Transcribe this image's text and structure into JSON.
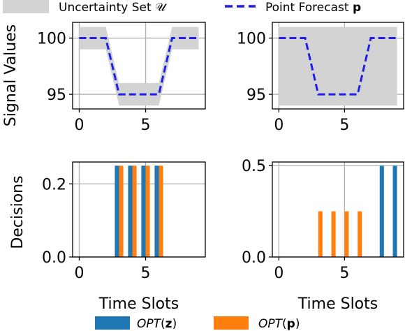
{
  "legend_top": {
    "band_label": "Uncertainty Set 𝒰",
    "line_label_prefix": "Point Forecast ",
    "line_label_bold": "p"
  },
  "legend_bottom": {
    "z_prefix": "OPT",
    "z_open": "(",
    "z_bold": "z",
    "z_close": ")",
    "p_prefix": "OPT",
    "p_open": "(",
    "p_bold": "p",
    "p_close": ")"
  },
  "colors": {
    "band": "#d3d3d3",
    "forecast": "#1f1fe6",
    "opt_z": "#1f77b4",
    "opt_p": "#ff7f0e",
    "grid": "#b0b0b0"
  },
  "chart_data": [
    {
      "type": "line",
      "panel": "top-left",
      "ylabel": "Signal Values",
      "xlim": [
        -0.5,
        9.5
      ],
      "ylim": [
        93.7,
        101.4
      ],
      "xticks": [
        0,
        5
      ],
      "yticks": [
        95,
        100
      ],
      "tick_labels_x": [
        "0",
        "5"
      ],
      "tick_labels_y": [
        "95",
        "100"
      ],
      "x": [
        0,
        1,
        2,
        3,
        4,
        5,
        6,
        7,
        8,
        9
      ],
      "forecast": [
        100,
        100,
        100,
        95,
        95,
        95,
        95,
        100,
        100,
        100
      ],
      "band_lower": [
        99,
        99,
        99,
        94,
        94,
        94,
        94,
        99,
        99,
        99
      ],
      "band_upper": [
        101,
        101,
        101,
        96,
        96,
        96,
        96,
        101,
        101,
        101
      ],
      "grid": true
    },
    {
      "type": "line",
      "panel": "top-right",
      "xlim": [
        -0.5,
        9.5
      ],
      "ylim": [
        93.7,
        101.4
      ],
      "xticks": [
        0,
        5
      ],
      "yticks": [
        95,
        100
      ],
      "tick_labels_x": [
        "0",
        "5"
      ],
      "tick_labels_y": [
        "95",
        "100"
      ],
      "x": [
        0,
        1,
        2,
        3,
        4,
        5,
        6,
        7,
        8,
        9
      ],
      "forecast": [
        100,
        100,
        100,
        95,
        95,
        95,
        95,
        100,
        100,
        100
      ],
      "band_lower": [
        94,
        94,
        94,
        94,
        94,
        94,
        94,
        94,
        94,
        94
      ],
      "band_upper": [
        101,
        101,
        101,
        101,
        101,
        101,
        101,
        101,
        101,
        101
      ],
      "grid": true
    },
    {
      "type": "bar",
      "panel": "bottom-left",
      "ylabel": "Decisions",
      "xlabel": "Time Slots",
      "xlim": [
        -0.5,
        9.5
      ],
      "ylim": [
        0,
        0.26
      ],
      "xticks": [
        0,
        5
      ],
      "yticks": [
        0.0,
        0.2
      ],
      "tick_labels_x": [
        "0",
        "5"
      ],
      "tick_labels_y": [
        "0.0",
        "0.2"
      ],
      "x": [
        0,
        1,
        2,
        3,
        4,
        5,
        6,
        7,
        8,
        9
      ],
      "opt_z": [
        0,
        0,
        0,
        0.25,
        0.25,
        0.25,
        0.25,
        0,
        0,
        0
      ],
      "opt_p": [
        0,
        0,
        0,
        0.25,
        0.25,
        0.25,
        0.25,
        0,
        0,
        0
      ],
      "grid": true
    },
    {
      "type": "bar",
      "panel": "bottom-right",
      "xlabel": "Time Slots",
      "xlim": [
        -0.5,
        9.5
      ],
      "ylim": [
        0,
        0.52
      ],
      "xticks": [
        0,
        5
      ],
      "yticks": [
        0.0,
        0.5
      ],
      "tick_labels_x": [
        "0",
        "5"
      ],
      "tick_labels_y": [
        "0.0",
        "0.5"
      ],
      "x": [
        0,
        1,
        2,
        3,
        4,
        5,
        6,
        7,
        8,
        9
      ],
      "opt_z": [
        0,
        0,
        0,
        0,
        0,
        0,
        0,
        0,
        0.5,
        0.5
      ],
      "opt_p": [
        0,
        0,
        0,
        0.25,
        0.25,
        0.25,
        0.25,
        0,
        0,
        0
      ],
      "grid": true
    }
  ]
}
